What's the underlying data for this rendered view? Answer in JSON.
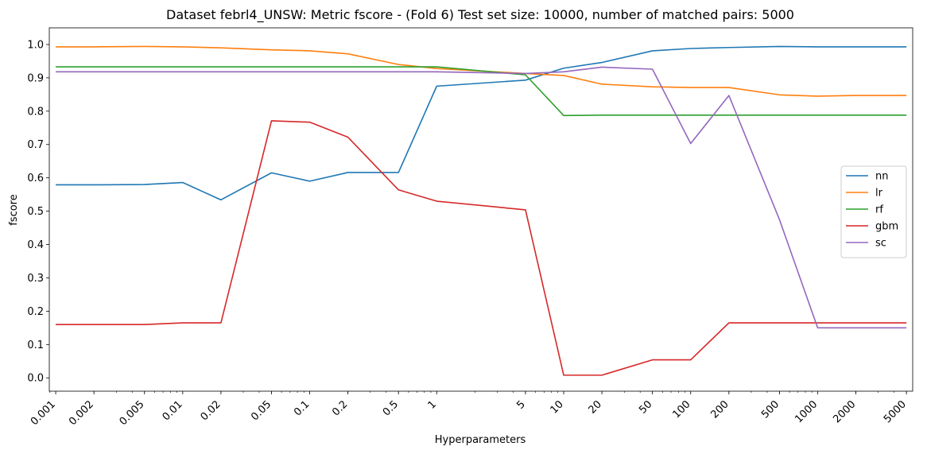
{
  "chart_data": {
    "type": "line",
    "title": "Dataset febrl4_UNSW: Metric fscore - (Fold 6) Test set size: 10000, number of matched pairs: 5000",
    "xlabel": "Hyperparameters",
    "ylabel": "fscore",
    "xscale": "log",
    "xlim": [
      0.00089,
      5600
    ],
    "ylim": [
      -0.04,
      1.05
    ],
    "grid": false,
    "legend_position": "center-right",
    "x": [
      0.001,
      0.002,
      0.005,
      0.01,
      0.02,
      0.05,
      0.1,
      0.2,
      0.5,
      1,
      5,
      10,
      20,
      50,
      100,
      200,
      500,
      1000,
      2000,
      5000
    ],
    "x_tick_labels": [
      "0.001",
      "0.002",
      "0.005",
      "0.01",
      "0.02",
      "0.05",
      "0.1",
      "0.2",
      "0.5",
      "1",
      "5",
      "10",
      "20",
      "50",
      "100",
      "200",
      "500",
      "1000",
      "2000",
      "5000"
    ],
    "y_ticks": [
      0.0,
      0.1,
      0.2,
      0.3,
      0.4,
      0.5,
      0.6,
      0.7,
      0.8,
      0.9,
      1.0
    ],
    "y_tick_labels": [
      "0.0",
      "0.1",
      "0.2",
      "0.3",
      "0.4",
      "0.5",
      "0.6",
      "0.7",
      "0.8",
      "0.9",
      "1.0"
    ],
    "series": [
      {
        "name": "nn",
        "color": "#1f77b4",
        "values": [
          0.579,
          0.579,
          0.58,
          0.586,
          0.534,
          0.615,
          0.59,
          0.616,
          0.616,
          0.875,
          0.893,
          0.929,
          0.946,
          0.981,
          0.988,
          0.991,
          0.994,
          0.993,
          0.993,
          0.993
        ]
      },
      {
        "name": "lr",
        "color": "#ff7f0e",
        "values": [
          0.993,
          0.993,
          0.994,
          0.993,
          0.99,
          0.984,
          0.981,
          0.972,
          0.94,
          0.928,
          0.913,
          0.907,
          0.881,
          0.873,
          0.871,
          0.871,
          0.849,
          0.845,
          0.847,
          0.847
        ]
      },
      {
        "name": "rf",
        "color": "#2ca02c",
        "values": [
          0.933,
          0.933,
          0.933,
          0.933,
          0.933,
          0.933,
          0.933,
          0.933,
          0.933,
          0.933,
          0.909,
          0.787,
          0.788,
          0.788,
          0.788,
          0.788,
          0.788,
          0.788,
          0.788,
          0.788
        ]
      },
      {
        "name": "gbm",
        "color": "#d62728",
        "values": [
          0.16,
          0.16,
          0.16,
          0.165,
          0.165,
          0.771,
          0.767,
          0.722,
          0.564,
          0.53,
          0.504,
          0.008,
          0.008,
          0.054,
          0.054,
          0.165,
          0.165,
          0.165,
          0.165,
          0.165
        ]
      },
      {
        "name": "sc",
        "color": "#9467bd",
        "values": [
          0.918,
          0.918,
          0.918,
          0.918,
          0.918,
          0.918,
          0.918,
          0.918,
          0.918,
          0.918,
          0.913,
          0.918,
          0.932,
          0.926,
          0.703,
          0.847,
          0.475,
          0.15,
          0.15,
          0.15
        ]
      }
    ]
  }
}
